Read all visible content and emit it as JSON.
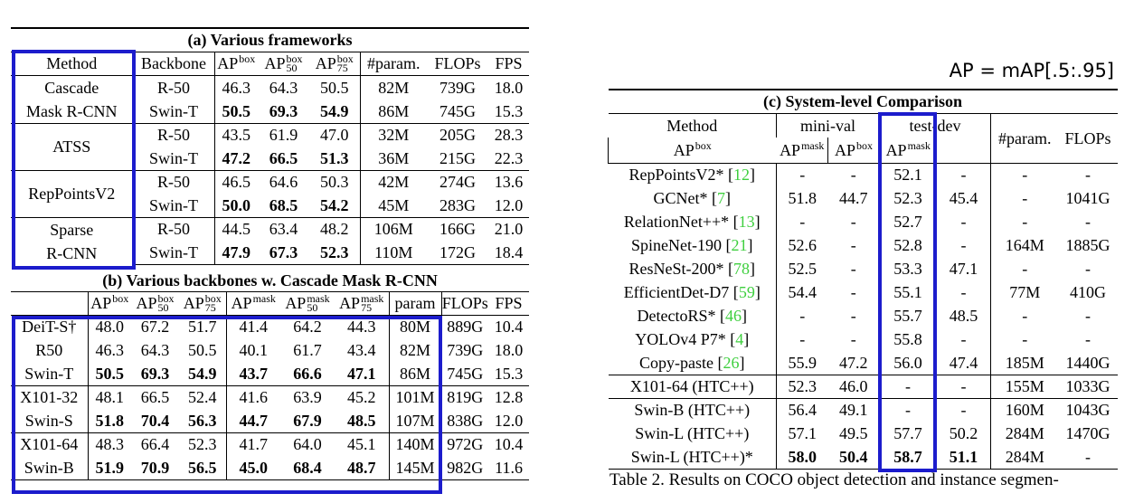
{
  "table_a": {
    "title": "(a) Various frameworks",
    "columns": [
      "Method",
      "Backbone",
      {
        "base": "AP",
        "sup": "box"
      },
      {
        "base": "AP",
        "sup": "box",
        "sub": "50"
      },
      {
        "base": "AP",
        "sup": "box",
        "sub": "75"
      },
      "#param.",
      "FLOPs",
      "FPS"
    ],
    "groups": [
      {
        "method": [
          "Cascade",
          "Mask R-CNN"
        ],
        "rows": [
          {
            "cells": [
              "R-50",
              "46.3",
              "64.3",
              "50.5",
              "82M",
              "739G",
              "18.0"
            ]
          },
          {
            "cells": [
              "Swin-T",
              "50.5",
              "69.3",
              "54.9",
              "86M",
              "745G",
              "15.3"
            ],
            "bold": true
          }
        ]
      },
      {
        "method": [
          "ATSS"
        ],
        "rows": [
          {
            "cells": [
              "R-50",
              "43.5",
              "61.9",
              "47.0",
              "32M",
              "205G",
              "28.3"
            ]
          },
          {
            "cells": [
              "Swin-T",
              "47.2",
              "66.5",
              "51.3",
              "36M",
              "215G",
              "22.3"
            ],
            "bold": true
          }
        ]
      },
      {
        "method": [
          "RepPointsV2"
        ],
        "rows": [
          {
            "cells": [
              "R-50",
              "46.5",
              "64.6",
              "50.3",
              "42M",
              "274G",
              "13.6"
            ]
          },
          {
            "cells": [
              "Swin-T",
              "50.0",
              "68.5",
              "54.2",
              "45M",
              "283G",
              "12.0"
            ],
            "bold": true
          }
        ]
      },
      {
        "method": [
          "Sparse",
          "R-CNN"
        ],
        "rows": [
          {
            "cells": [
              "R-50",
              "44.5",
              "63.4",
              "48.2",
              "106M",
              "166G",
              "21.0"
            ]
          },
          {
            "cells": [
              "Swin-T",
              "47.9",
              "67.3",
              "52.3",
              "110M",
              "172G",
              "18.4"
            ],
            "bold": true
          }
        ]
      }
    ]
  },
  "table_b": {
    "title": "(b) Various backbones w. Cascade Mask R-CNN",
    "columns": [
      {
        "base": "AP",
        "sup": "box"
      },
      {
        "base": "AP",
        "sup": "box",
        "sub": "50"
      },
      {
        "base": "AP",
        "sup": "box",
        "sub": "75"
      },
      {
        "base": "AP",
        "sup": "mask"
      },
      {
        "base": "AP",
        "sup": "mask",
        "sub": "50"
      },
      {
        "base": "AP",
        "sup": "mask",
        "sub": "75"
      },
      "param",
      "FLOPs",
      "FPS"
    ],
    "groups": [
      {
        "rows": [
          {
            "cells": [
              "DeiT-S†",
              "48.0",
              "67.2",
              "51.7",
              "41.4",
              "64.2",
              "44.3",
              "80M",
              "889G",
              "10.4"
            ]
          },
          {
            "cells": [
              "R50",
              "46.3",
              "64.3",
              "50.5",
              "40.1",
              "61.7",
              "43.4",
              "82M",
              "739G",
              "18.0"
            ]
          },
          {
            "cells": [
              "Swin-T",
              "50.5",
              "69.3",
              "54.9",
              "43.7",
              "66.6",
              "47.1",
              "86M",
              "745G",
              "15.3"
            ],
            "bold": true
          }
        ]
      },
      {
        "rows": [
          {
            "cells": [
              "X101-32",
              "48.1",
              "66.5",
              "52.4",
              "41.6",
              "63.9",
              "45.2",
              "101M",
              "819G",
              "12.8"
            ]
          },
          {
            "cells": [
              "Swin-S",
              "51.8",
              "70.4",
              "56.3",
              "44.7",
              "67.9",
              "48.5",
              "107M",
              "838G",
              "12.0"
            ],
            "bold": true
          }
        ]
      },
      {
        "rows": [
          {
            "cells": [
              "X101-64",
              "48.3",
              "66.4",
              "52.3",
              "41.7",
              "64.0",
              "45.1",
              "140M",
              "972G",
              "10.4"
            ]
          },
          {
            "cells": [
              "Swin-B",
              "51.9",
              "70.9",
              "56.5",
              "45.0",
              "68.4",
              "48.7",
              "145M",
              "982G",
              "11.6"
            ],
            "bold": true
          }
        ]
      }
    ]
  },
  "annotation": "AP = mAP[.5:.95]",
  "table_c": {
    "title": "(c) System-level Comparison",
    "columns": [
      "Method",
      "mini-val",
      "test-dev",
      "#param.",
      "FLOPs"
    ],
    "subcolumns": [
      {
        "base": "AP",
        "sup": "box"
      },
      {
        "base": "AP",
        "sup": "mask"
      },
      {
        "base": "AP",
        "sup": "box"
      },
      {
        "base": "AP",
        "sup": "mask"
      }
    ],
    "groups": [
      {
        "rows": [
          {
            "cells": [
              "RepPointsV2* [12]",
              "-",
              "-",
              "52.1",
              "-",
              "-",
              "-"
            ]
          },
          {
            "cells": [
              "GCNet* [7]",
              "51.8",
              "44.7",
              "52.3",
              "45.4",
              "-",
              "1041G"
            ]
          },
          {
            "cells": [
              "RelationNet++* [13]",
              "-",
              "-",
              "52.7",
              "-",
              "-",
              "-"
            ]
          },
          {
            "cells": [
              "SpineNet-190 [21]",
              "52.6",
              "-",
              "52.8",
              "-",
              "164M",
              "1885G"
            ]
          },
          {
            "cells": [
              "ResNeSt-200* [78]",
              "52.5",
              "-",
              "53.3",
              "47.1",
              "-",
              "-"
            ]
          },
          {
            "cells": [
              "EfficientDet-D7 [59]",
              "54.4",
              "-",
              "55.1",
              "-",
              "77M",
              "410G"
            ]
          },
          {
            "cells": [
              "DetectoRS* [46]",
              "-",
              "-",
              "55.7",
              "48.5",
              "-",
              "-"
            ]
          },
          {
            "cells": [
              "YOLOv4 P7* [4]",
              "-",
              "-",
              "55.8",
              "-",
              "-",
              "-"
            ]
          },
          {
            "cells": [
              "Copy-paste [26]",
              "55.9",
              "47.2",
              "56.0",
              "47.4",
              "185M",
              "1440G"
            ]
          }
        ]
      },
      {
        "rows": [
          {
            "cells": [
              "X101-64 (HTC++)",
              "52.3",
              "46.0",
              "-",
              "-",
              "155M",
              "1033G"
            ]
          }
        ]
      },
      {
        "rows": [
          {
            "cells": [
              "Swin-B (HTC++)",
              "56.4",
              "49.1",
              "-",
              "-",
              "160M",
              "1043G"
            ]
          },
          {
            "cells": [
              "Swin-L (HTC++)",
              "57.1",
              "49.5",
              "57.7",
              "50.2",
              "284M",
              "1470G"
            ]
          },
          {
            "cells": [
              "Swin-L (HTC++)*",
              "58.0",
              "50.4",
              "58.7",
              "51.1",
              "284M",
              "-"
            ],
            "bold": true
          }
        ]
      }
    ]
  },
  "caption": "Table 2. Results on COCO object detection and instance segmen-"
}
